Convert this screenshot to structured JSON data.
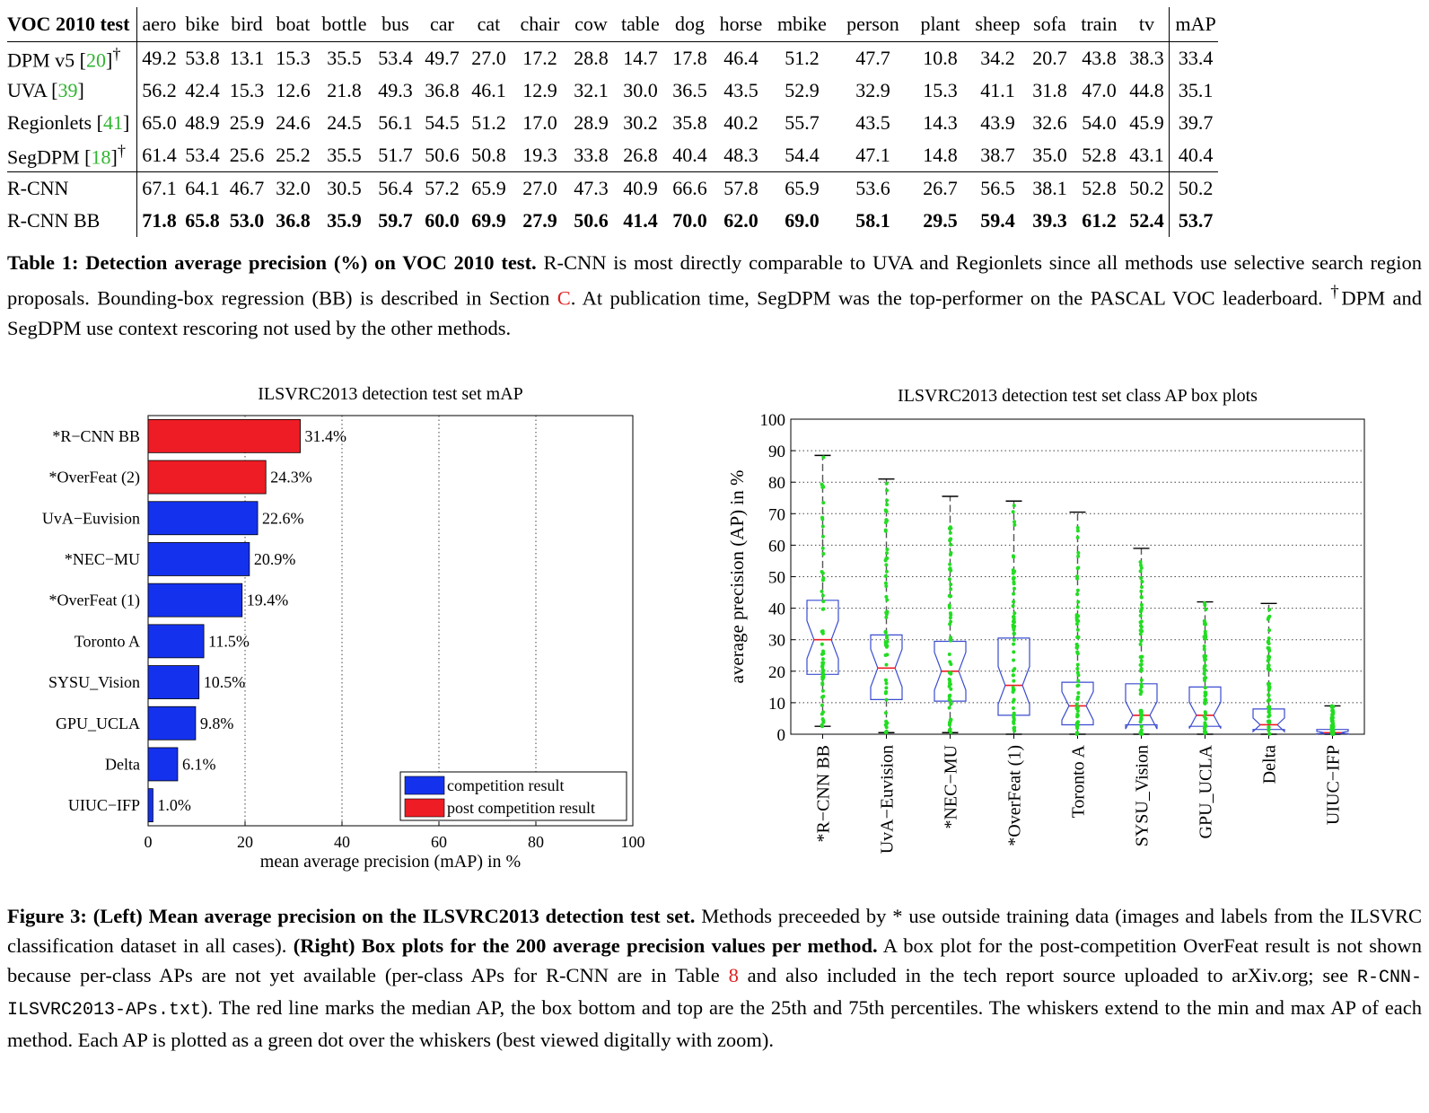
{
  "table": {
    "title": "VOC 2010 test",
    "columns": [
      "aero",
      "bike",
      "bird",
      "boat",
      "bottle",
      "bus",
      "car",
      "cat",
      "chair",
      "cow",
      "table",
      "dog",
      "horse",
      "mbike",
      "person",
      "plant",
      "sheep",
      "sofa",
      "train",
      "tv"
    ],
    "map_header": "mAP",
    "rows": [
      {
        "name": "DPM v5 [",
        "ref": "20",
        "suffix": "]",
        "dagger": "†",
        "values": [
          "49.2",
          "53.8",
          "13.1",
          "15.3",
          "35.5",
          "53.4",
          "49.7",
          "27.0",
          "17.2",
          "28.8",
          "14.7",
          "17.8",
          "46.4",
          "51.2",
          "47.7",
          "10.8",
          "34.2",
          "20.7",
          "43.8",
          "38.3"
        ],
        "map": "33.4"
      },
      {
        "name": "UVA [",
        "ref": "39",
        "suffix": "]",
        "dagger": "",
        "values": [
          "56.2",
          "42.4",
          "15.3",
          "12.6",
          "21.8",
          "49.3",
          "36.8",
          "46.1",
          "12.9",
          "32.1",
          "30.0",
          "36.5",
          "43.5",
          "52.9",
          "32.9",
          "15.3",
          "41.1",
          "31.8",
          "47.0",
          "44.8"
        ],
        "map": "35.1"
      },
      {
        "name": "Regionlets [",
        "ref": "41",
        "suffix": "]",
        "dagger": "",
        "values": [
          "65.0",
          "48.9",
          "25.9",
          "24.6",
          "24.5",
          "56.1",
          "54.5",
          "51.2",
          "17.0",
          "28.9",
          "30.2",
          "35.8",
          "40.2",
          "55.7",
          "43.5",
          "14.3",
          "43.9",
          "32.6",
          "54.0",
          "45.9"
        ],
        "map": "39.7"
      },
      {
        "name": "SegDPM [",
        "ref": "18",
        "suffix": "]",
        "dagger": "†",
        "values": [
          "61.4",
          "53.4",
          "25.6",
          "25.2",
          "35.5",
          "51.7",
          "50.6",
          "50.8",
          "19.3",
          "33.8",
          "26.8",
          "40.4",
          "48.3",
          "54.4",
          "47.1",
          "14.8",
          "38.7",
          "35.0",
          "52.8",
          "43.1"
        ],
        "map": "40.4"
      },
      {
        "name": "R-CNN",
        "ref": "",
        "suffix": "",
        "dagger": "",
        "values": [
          "67.1",
          "64.1",
          "46.7",
          "32.0",
          "30.5",
          "56.4",
          "57.2",
          "65.9",
          "27.0",
          "47.3",
          "40.9",
          "66.6",
          "57.8",
          "65.9",
          "53.6",
          "26.7",
          "56.5",
          "38.1",
          "52.8",
          "50.2"
        ],
        "map": "50.2"
      },
      {
        "name": "R-CNN BB",
        "ref": "",
        "suffix": "",
        "dagger": "",
        "values": [
          "71.8",
          "65.8",
          "53.0",
          "36.8",
          "35.9",
          "59.7",
          "60.0",
          "69.9",
          "27.9",
          "50.6",
          "41.4",
          "70.0",
          "62.0",
          "69.0",
          "58.1",
          "29.5",
          "59.4",
          "39.3",
          "61.2",
          "52.4"
        ],
        "map": "53.7"
      }
    ]
  },
  "table_caption": {
    "label": "Table 1: Detection average precision (%) on VOC 2010 test.",
    "text1": " R-CNN is most directly comparable to UVA and Regionlets since all methods use selective search region proposals. Bounding-box regression (BB) is described in Section ",
    "section_ref": "C",
    "text2": ". At publication time, SegDPM was the top-performer on the PASCAL VOC leaderboard. ",
    "dagger": "†",
    "text3": "DPM and SegDPM use context rescoring not used by the other methods."
  },
  "colors": {
    "competition": "#1432ee",
    "post_competition": "#ee1c24",
    "whisker": "#555555",
    "box": "#3a4ccf",
    "median": "#ee1c24",
    "dots": "#22dd22",
    "refs": "#2fb52f"
  },
  "chart_data": [
    {
      "type": "bar",
      "orientation": "horizontal",
      "title": "ILSVRC2013 detection test set mAP",
      "xlabel": "mean average precision (mAP) in %",
      "ylabel": "",
      "xlim": [
        0,
        100
      ],
      "xticks": [
        "0",
        "20",
        "40",
        "60",
        "80",
        "100"
      ],
      "categories": [
        "*R−CNN BB",
        "*OverFeat (2)",
        "UvA−Euvision",
        "*NEC−MU",
        "*OverFeat (1)",
        "Toronto A",
        "SYSU_Vision",
        "GPU_UCLA",
        "Delta",
        "UIUC−IFP"
      ],
      "values": [
        31.4,
        24.3,
        22.6,
        20.9,
        19.4,
        11.5,
        10.5,
        9.8,
        6.1,
        1.0
      ],
      "value_labels": [
        "31.4%",
        "24.3%",
        "22.6%",
        "20.9%",
        "19.4%",
        "11.5%",
        "10.5%",
        "9.8%",
        "6.1%",
        "1.0%"
      ],
      "groups": [
        "post",
        "post",
        "comp",
        "comp",
        "comp",
        "comp",
        "comp",
        "comp",
        "comp",
        "comp"
      ],
      "legend": {
        "position": "bottom-right",
        "entries": [
          "competition result",
          "post competition result"
        ]
      },
      "grid": "vertical dotted"
    },
    {
      "type": "box",
      "title": "ILSVRC2013 detection test set class AP box plots",
      "ylabel": "average precision (AP) in %",
      "ylim": [
        0,
        100
      ],
      "yticks": [
        "0",
        "10",
        "20",
        "30",
        "40",
        "50",
        "60",
        "70",
        "80",
        "90",
        "100"
      ],
      "categories": [
        "*R−CNN BB",
        "UvA−Euvision",
        "*NEC−MU",
        "*OverFeat (1)",
        "Toronto A",
        "SYSU_Vision",
        "GPU_UCLA",
        "Delta",
        "UIUC−IFP"
      ],
      "stats": [
        {
          "min": 2.5,
          "q1": 19,
          "median": 30,
          "q3": 42.5,
          "max": 88.5
        },
        {
          "min": 0.5,
          "q1": 11,
          "median": 21,
          "q3": 31.5,
          "max": 81
        },
        {
          "min": 0.5,
          "q1": 10.5,
          "median": 20,
          "q3": 29.5,
          "max": 75.5
        },
        {
          "min": 0,
          "q1": 6,
          "median": 15.5,
          "q3": 30.5,
          "max": 74
        },
        {
          "min": 0,
          "q1": 3,
          "median": 9,
          "q3": 16.5,
          "max": 70.5
        },
        {
          "min": 0,
          "q1": 3,
          "median": 6,
          "q3": 16,
          "max": 59
        },
        {
          "min": 0,
          "q1": 2.5,
          "median": 6,
          "q3": 15,
          "max": 42
        },
        {
          "min": 0,
          "q1": 1.5,
          "median": 3,
          "q3": 8,
          "max": 41.5
        },
        {
          "min": 0,
          "q1": 0.2,
          "median": 0.5,
          "q3": 1.5,
          "max": 9
        }
      ],
      "grid": "horizontal dotted"
    }
  ],
  "figure_caption": {
    "label": "Figure 3:",
    "left_bold": " (Left) Mean average precision on the ILSVRC2013 detection test set.",
    "text1": " Methods preceeded by * use outside training data (images and labels from the ILSVRC classification dataset in all cases). ",
    "right_bold": "(Right) Box plots for the 200 average precision values per method.",
    "text2": " A box plot for the post-competition OverFeat result is not shown because per-class APs are not yet available (per-class APs for R-CNN are in Table ",
    "table_ref": "8",
    "text3": " and also included in the tech report source uploaded to arXiv.org; see ",
    "filename": "R-CNN-ILSVRC2013-APs.txt",
    "text4": "). The red line marks the median AP, the box bottom and top are the 25th and 75th percentiles. The whiskers extend to the min and max AP of each method. Each AP is plotted as a green dot over the whiskers (best viewed digitally with zoom)."
  }
}
